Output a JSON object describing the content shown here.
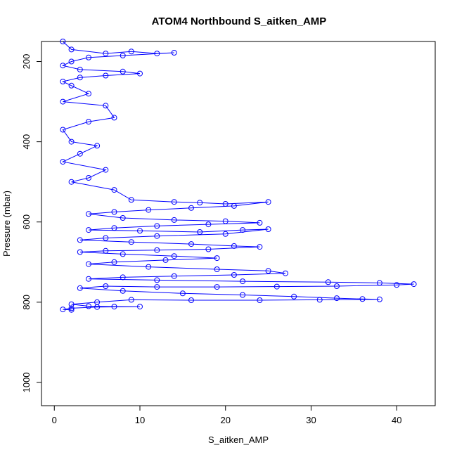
{
  "chart_data": {
    "type": "scatter",
    "title": "ATOM4 Northbound S_aitken_AMP",
    "xlabel": "S_aitken_AMP",
    "ylabel": "Pressure (mbar)",
    "xlim": [
      -1.5,
      44.5
    ],
    "ylim": [
      1058,
      150
    ],
    "y_reversed": true,
    "grid": false,
    "legend": "none",
    "marker": "open-circle",
    "line": "connected",
    "color": "#0000ff",
    "x_ticks": [
      0,
      10,
      20,
      30,
      40
    ],
    "y_ticks": [
      200,
      400,
      600,
      800,
      1000
    ],
    "series": [
      {
        "points": [
          [
            1,
            150
          ],
          [
            2,
            170
          ],
          [
            6,
            180
          ],
          [
            9,
            175
          ],
          [
            12,
            180
          ],
          [
            14,
            178
          ],
          [
            8,
            185
          ],
          [
            4,
            190
          ],
          [
            2,
            200
          ],
          [
            1,
            210
          ],
          [
            3,
            220
          ],
          [
            8,
            225
          ],
          [
            10,
            230
          ],
          [
            6,
            235
          ],
          [
            3,
            240
          ],
          [
            1,
            250
          ],
          [
            2,
            260
          ],
          [
            4,
            280
          ],
          [
            1,
            300
          ],
          [
            6,
            310
          ],
          [
            7,
            340
          ],
          [
            4,
            350
          ],
          [
            1,
            370
          ],
          [
            2,
            400
          ],
          [
            5,
            410
          ],
          [
            3,
            430
          ],
          [
            1,
            450
          ],
          [
            6,
            470
          ],
          [
            4,
            490
          ],
          [
            2,
            500
          ],
          [
            7,
            520
          ],
          [
            9,
            545
          ],
          [
            14,
            550
          ],
          [
            17,
            552
          ],
          [
            20,
            555
          ],
          [
            25,
            550
          ],
          [
            21,
            560
          ],
          [
            16,
            565
          ],
          [
            11,
            570
          ],
          [
            7,
            575
          ],
          [
            4,
            580
          ],
          [
            8,
            590
          ],
          [
            14,
            595
          ],
          [
            20,
            598
          ],
          [
            24,
            602
          ],
          [
            18,
            606
          ],
          [
            12,
            610
          ],
          [
            7,
            615
          ],
          [
            4,
            620
          ],
          [
            10,
            622
          ],
          [
            17,
            625
          ],
          [
            22,
            620
          ],
          [
            25,
            618
          ],
          [
            20,
            630
          ],
          [
            12,
            635
          ],
          [
            6,
            640
          ],
          [
            3,
            645
          ],
          [
            9,
            650
          ],
          [
            16,
            655
          ],
          [
            21,
            660
          ],
          [
            24,
            662
          ],
          [
            18,
            668
          ],
          [
            12,
            670
          ],
          [
            6,
            672
          ],
          [
            3,
            675
          ],
          [
            8,
            680
          ],
          [
            14,
            685
          ],
          [
            19,
            690
          ],
          [
            13,
            695
          ],
          [
            7,
            700
          ],
          [
            4,
            705
          ],
          [
            11,
            712
          ],
          [
            19,
            718
          ],
          [
            25,
            722
          ],
          [
            27,
            728
          ],
          [
            21,
            732
          ],
          [
            14,
            735
          ],
          [
            8,
            738
          ],
          [
            4,
            742
          ],
          [
            12,
            745
          ],
          [
            22,
            748
          ],
          [
            32,
            750
          ],
          [
            38,
            752
          ],
          [
            42,
            755
          ],
          [
            40,
            757
          ],
          [
            33,
            760
          ],
          [
            26,
            761
          ],
          [
            19,
            762
          ],
          [
            12,
            762
          ],
          [
            6,
            760
          ],
          [
            3,
            765
          ],
          [
            8,
            772
          ],
          [
            15,
            778
          ],
          [
            22,
            782
          ],
          [
            28,
            786
          ],
          [
            33,
            790
          ],
          [
            36,
            792
          ],
          [
            38,
            793
          ],
          [
            31,
            794
          ],
          [
            24,
            795
          ],
          [
            16,
            795
          ],
          [
            9,
            794
          ],
          [
            5,
            800
          ],
          [
            2,
            805
          ],
          [
            4,
            810
          ],
          [
            7,
            811
          ],
          [
            10,
            811
          ],
          [
            5,
            812
          ],
          [
            2,
            815
          ],
          [
            1,
            818
          ],
          [
            2,
            819
          ]
        ]
      }
    ]
  }
}
